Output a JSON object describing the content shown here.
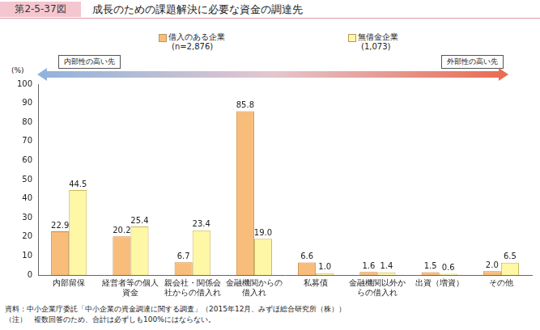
{
  "chart_data": {
    "type": "bar",
    "figure_label": "第2-5-37図",
    "title": "成長のための課題解決に必要な資金の調達先",
    "y_label": "(%)",
    "annotations": [
      "内部性の高い先",
      "外部性の高い先"
    ],
    "categories": [
      "内部留保",
      "経営者等の個人資金",
      "親会社・関係会社からの借入れ",
      "金融機関からの借入れ",
      "私募債",
      "金融機関以外からの借入れ",
      "出資（増資）",
      "その他"
    ],
    "series": [
      {
        "name": "借入のある企業",
        "note": "(n=2,876)",
        "color": "#f8bd7a",
        "values": [
          22.9,
          20.2,
          6.7,
          85.8,
          6.6,
          1.6,
          1.5,
          2.0
        ],
        "value_labels": [
          "22.9",
          "20.2",
          "6.7",
          "85.8",
          "6.6",
          "1.6",
          "1.5",
          "2.0"
        ]
      },
      {
        "name": "無借金企業",
        "note": "(1,073)",
        "color": "#fdf7a6",
        "values": [
          44.5,
          25.4,
          23.4,
          19.0,
          1.0,
          1.4,
          0.6,
          6.5
        ],
        "value_labels": [
          "44.5",
          "25.4",
          "23.4",
          "19.0",
          "1.0",
          "1.4",
          "0.6",
          "6.5"
        ]
      }
    ],
    "ylim": [
      0,
      100
    ],
    "yticks": [
      0,
      10,
      20,
      30,
      40,
      50,
      60,
      70,
      80,
      90,
      100
    ],
    "grid": false,
    "legend": "top",
    "data_labels": true,
    "notes": [
      "資料：中小企業庁委託「中小企業の資金調達に関する調査」（2015年12月、みずほ総合研究所（株））",
      "（注）　複数回答のため、合計は必ずしも100%にはならない。"
    ]
  }
}
